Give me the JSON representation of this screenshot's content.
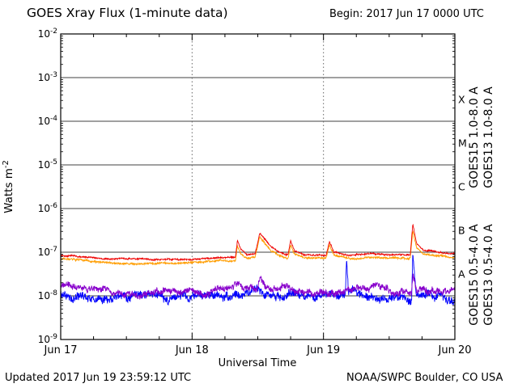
{
  "header": {
    "title": "GOES Xray Flux (1-minute data)",
    "begin": "Begin: 2017 Jun 17 0000 UTC"
  },
  "footer": {
    "updated": "Updated 2017 Jun 19 23:59:12 UTC",
    "credit": "NOAA/SWPC Boulder, CO USA"
  },
  "chart_data": {
    "type": "line",
    "title": "GOES Xray Flux (1-minute data)",
    "xlabel": "Universal Time",
    "ylabel": {
      "text": "Watts m",
      "sup": "-2"
    },
    "x_range_days": [
      0,
      3
    ],
    "y_log_range": [
      -9,
      -2
    ],
    "grid": "horizontal solid per decade, vertical dashed at day boundaries",
    "x_ticks": [
      {
        "day": 0,
        "label": "Jun 17",
        "grid": false
      },
      {
        "day": 1,
        "label": "Jun 18",
        "grid": true
      },
      {
        "day": 2,
        "label": "Jun 19",
        "grid": true
      },
      {
        "day": 3,
        "label": "Jun 20",
        "grid": false
      }
    ],
    "y_tick_exponents": [
      -2,
      -3,
      -4,
      -5,
      -6,
      -7,
      -8,
      -9
    ],
    "flux_classes": [
      {
        "label": "X",
        "log_center": -3.5
      },
      {
        "label": "M",
        "log_center": -4.5
      },
      {
        "label": "C",
        "log_center": -5.5
      },
      {
        "label": "B",
        "log_center": -6.5
      },
      {
        "label": "A",
        "log_center": -7.5
      }
    ],
    "right_labels": [
      {
        "text": "GOES15 1.0-8.0 A",
        "color": "#ee0000",
        "col": 0,
        "row": 0
      },
      {
        "text": "GOES13 1.0-8.0 A",
        "color": "#ff9d00",
        "col": 1,
        "row": 0
      },
      {
        "text": "GOES15 0.5-4.0 A",
        "color": "#8800cc",
        "col": 0,
        "row": 1
      },
      {
        "text": "GOES13 0.5-4.0 A",
        "color": "#0000ff",
        "col": 1,
        "row": 1
      }
    ],
    "series": [
      {
        "name": "GOES13 0.5-4.0 A",
        "color": "#0000ff",
        "noise_log": 0.1,
        "points": [
          [
            0,
            1.05e-08
          ],
          [
            0.2,
            9.5e-09
          ],
          [
            0.5,
            8.8e-09
          ],
          [
            0.8,
            9e-09
          ],
          [
            1.1,
            9.5e-09
          ],
          [
            1.34,
            1.1e-08
          ],
          [
            1.4,
            9.5e-09
          ],
          [
            1.515,
            1.5e-08
          ],
          [
            1.56,
            1.2e-08
          ],
          [
            1.7,
            9.5e-09
          ],
          [
            2.0,
            9e-09
          ],
          [
            2.165,
            9e-09
          ],
          [
            2.175,
            6.5e-08
          ],
          [
            2.19,
            1.2e-08
          ],
          [
            2.4,
            9e-09
          ],
          [
            2.6,
            8.8e-09
          ],
          [
            2.67,
            9e-09
          ],
          [
            2.68,
            9e-08
          ],
          [
            2.705,
            1.3e-08
          ],
          [
            2.85,
            8.8e-09
          ],
          [
            3,
            9.2e-09
          ]
        ]
      },
      {
        "name": "GOES15 0.5-4.0 A",
        "color": "#8800cc",
        "noise_log": 0.08,
        "points": [
          [
            0,
            1.7e-08
          ],
          [
            0.08,
            1.5e-08
          ],
          [
            0.2,
            1.3e-08
          ],
          [
            0.4,
            1.2e-08
          ],
          [
            0.7,
            1.1e-08
          ],
          [
            1.0,
            1.15e-08
          ],
          [
            1.25,
            1.3e-08
          ],
          [
            1.345,
            1.7e-08
          ],
          [
            1.4,
            1.3e-08
          ],
          [
            1.5,
            1.4e-08
          ],
          [
            1.515,
            2.6e-08
          ],
          [
            1.56,
            1.9e-08
          ],
          [
            1.65,
            1.4e-08
          ],
          [
            1.75,
            1.6e-08
          ],
          [
            1.8,
            1.3e-08
          ],
          [
            2.0,
            1.2e-08
          ],
          [
            2.2,
            1.3e-08
          ],
          [
            2.4,
            1.5e-08
          ],
          [
            2.55,
            1.3e-08
          ],
          [
            2.67,
            1.3e-08
          ],
          [
            2.68,
            3.6e-08
          ],
          [
            2.71,
            1.5e-08
          ],
          [
            2.85,
            1.3e-08
          ],
          [
            3,
            1.3e-08
          ]
        ]
      },
      {
        "name": "GOES13 1.0-8.0 A",
        "color": "#ff9d00",
        "noise_log": 0.022,
        "points": [
          [
            0,
            7e-08
          ],
          [
            0.1,
            6.6e-08
          ],
          [
            0.3,
            6e-08
          ],
          [
            0.55,
            5.6e-08
          ],
          [
            0.8,
            5.8e-08
          ],
          [
            1.0,
            5.8e-08
          ],
          [
            1.2,
            6.4e-08
          ],
          [
            1.33,
            6.6e-08
          ],
          [
            1.345,
            1.5e-07
          ],
          [
            1.37,
            9.5e-08
          ],
          [
            1.42,
            7.4e-08
          ],
          [
            1.48,
            7.8e-08
          ],
          [
            1.515,
            2.3e-07
          ],
          [
            1.55,
            1.7e-07
          ],
          [
            1.6,
            1.1e-07
          ],
          [
            1.66,
            8.5e-08
          ],
          [
            1.73,
            7.4e-08
          ],
          [
            1.75,
            1.5e-07
          ],
          [
            1.78,
            9e-08
          ],
          [
            1.85,
            7.2e-08
          ],
          [
            2.02,
            7e-08
          ],
          [
            2.045,
            1.4e-07
          ],
          [
            2.08,
            8.2e-08
          ],
          [
            2.2,
            7.2e-08
          ],
          [
            2.35,
            7.8e-08
          ],
          [
            2.5,
            7.4e-08
          ],
          [
            2.66,
            7.4e-08
          ],
          [
            2.68,
            3.2e-07
          ],
          [
            2.71,
            1.3e-07
          ],
          [
            2.76,
            9.5e-08
          ],
          [
            2.9,
            8.2e-08
          ],
          [
            3,
            7.8e-08
          ]
        ]
      },
      {
        "name": "GOES15 1.0-8.0 A",
        "color": "#ee0000",
        "noise_log": 0.018,
        "points": [
          [
            0,
            8.5e-08
          ],
          [
            0.1,
            8e-08
          ],
          [
            0.3,
            7.2e-08
          ],
          [
            0.55,
            6.8e-08
          ],
          [
            0.8,
            7e-08
          ],
          [
            1.0,
            7e-08
          ],
          [
            1.2,
            7.8e-08
          ],
          [
            1.33,
            8e-08
          ],
          [
            1.345,
            1.9e-07
          ],
          [
            1.37,
            1.2e-07
          ],
          [
            1.42,
            9e-08
          ],
          [
            1.48,
            9.5e-08
          ],
          [
            1.515,
            2.7e-07
          ],
          [
            1.55,
            2e-07
          ],
          [
            1.6,
            1.3e-07
          ],
          [
            1.66,
            1e-07
          ],
          [
            1.73,
            9e-08
          ],
          [
            1.75,
            1.9e-07
          ],
          [
            1.78,
            1.1e-07
          ],
          [
            1.85,
            8.8e-08
          ],
          [
            2.02,
            8.5e-08
          ],
          [
            2.045,
            1.75e-07
          ],
          [
            2.08,
            1e-07
          ],
          [
            2.2,
            8.8e-08
          ],
          [
            2.35,
            9.5e-08
          ],
          [
            2.5,
            9e-08
          ],
          [
            2.66,
            9e-08
          ],
          [
            2.68,
            4.6e-07
          ],
          [
            2.71,
            1.6e-07
          ],
          [
            2.76,
            1.15e-07
          ],
          [
            2.9,
            1e-07
          ],
          [
            3,
            9.5e-08
          ]
        ]
      }
    ]
  }
}
